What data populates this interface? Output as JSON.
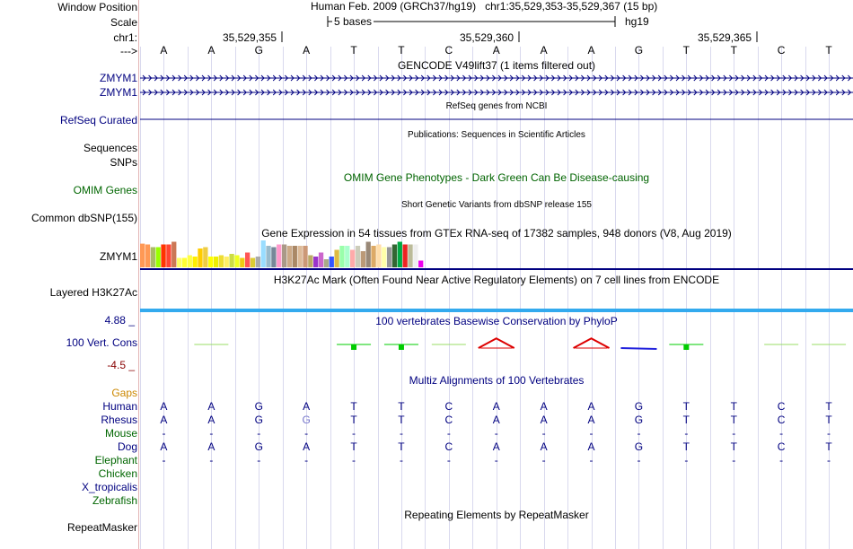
{
  "header": {
    "labels": {
      "window_position": "Window Position",
      "scale": "Scale",
      "chrom": "chr1:",
      "arrow": "--->"
    },
    "assembly": "Human Feb. 2009 (GRCh37/hg19)",
    "position": "chr1:35,529,353-35,529,367 (15 bp)",
    "scale_text": "5 bases",
    "db": "hg19",
    "coord_ticks": [
      "35,529,355",
      "35,529,360",
      "35,529,365"
    ]
  },
  "sequence": [
    "A",
    "A",
    "G",
    "A",
    "T",
    "T",
    "C",
    "A",
    "A",
    "A",
    "G",
    "T",
    "T",
    "C",
    "T"
  ],
  "gencode": {
    "title": "GENCODE V49lift37 (1 items filtered out)",
    "rows": [
      "ZMYM1",
      "ZMYM1"
    ]
  },
  "refseq": {
    "label": "RefSeq Curated",
    "title": "RefSeq genes from NCBI"
  },
  "publications": {
    "label": "Sequences",
    "title": "Publications: Sequences in Scientific Articles"
  },
  "snps": {
    "label": "SNPs"
  },
  "omim": {
    "label": "OMIM Genes",
    "title": "OMIM Gene Phenotypes - Dark Green Can Be Disease-causing"
  },
  "dbsnp": {
    "label": "Common dbSNP(155)",
    "title": "Short Genetic Variants from dbSNP release 155"
  },
  "gtex": {
    "label": "ZMYM1",
    "title": "Gene Expression in 54 tissues from GTEx RNA-seq of 17382 samples, 948 donors (V8, Aug 2019)",
    "expression": [
      0.88,
      0.85,
      0.75,
      0.75,
      0.85,
      0.85,
      0.95,
      0.35,
      0.35,
      0.45,
      0.4,
      0.7,
      0.75,
      0.4,
      0.4,
      0.45,
      0.4,
      0.5,
      0.45,
      0.35,
      0.55,
      0.35,
      0.4,
      1.0,
      0.8,
      0.75,
      0.85,
      0.85,
      0.8,
      0.8,
      0.8,
      0.8,
      0.45,
      0.4,
      0.55,
      0.3,
      0.4,
      0.65,
      0.8,
      0.8,
      0.65,
      0.8,
      0.6,
      0.95,
      0.8,
      0.85,
      0.75,
      0.75,
      0.85,
      0.95,
      0.85,
      0.85,
      0.85,
      0.25
    ],
    "colors": [
      "#ff9955",
      "#ff9955",
      "#aabb66",
      "#99ff00",
      "#ff3300",
      "#ff4433",
      "#cc7755",
      "#ffff66",
      "#ffff33",
      "#ffff44",
      "#ffee00",
      "#ffcc00",
      "#eecc44",
      "#ffff00",
      "#eeee00",
      "#eedd33",
      "#ffee66",
      "#ccdd44",
      "#eeff22",
      "#eecc11",
      "#ff5555",
      "#ddcc33",
      "#aaaaaa",
      "#99ddff",
      "#99bbcc",
      "#778899",
      "#ff99cc",
      "#aa9988",
      "#ccaa88",
      "#aa8866",
      "#ddbb99",
      "#cc9977",
      "#bbaa66",
      "#9933cc",
      "#cc66cc",
      "#aaaa88",
      "#3355ff",
      "#ddbb44",
      "#99ffaa",
      "#aaffcc",
      "#ffaaaa",
      "#ccccbb",
      "#bb9977",
      "#998877",
      "#ddaa66",
      "#ffddaa",
      "#ffffaa",
      "#999999",
      "#336633",
      "#00aa44",
      "#ee2222",
      "#bbbb99",
      "#eeeeee",
      "#ee00ee"
    ]
  },
  "h3k27ac": {
    "label": "Layered H3K27Ac",
    "title": "H3K27Ac Mark (Often Found Near Active Regulatory Elements) on 7 cell lines from ENCODE"
  },
  "phylop": {
    "label": "100 Vert. Cons",
    "max": "4.88 _",
    "min": "-4.5 _",
    "title": "100 vertebrates Basewise Conservation by PhyloP",
    "scores": [
      0,
      0.3,
      0,
      0,
      0.5,
      0.5,
      0.15,
      1.8,
      0,
      1.8,
      -0.2,
      0.5,
      0,
      0.1,
      0.1
    ]
  },
  "multiz": {
    "title": "Multiz Alignments of 100 Vertebrates",
    "gaps": "Gaps",
    "species": [
      {
        "name": "Human",
        "seq": [
          "A",
          "A",
          "G",
          "A",
          "T",
          "T",
          "C",
          "A",
          "A",
          "A",
          "G",
          "T",
          "T",
          "C",
          "T"
        ]
      },
      {
        "name": "Rhesus",
        "seq": [
          "A",
          "A",
          "G",
          "G",
          "T",
          "T",
          "C",
          "A",
          "A",
          "A",
          "G",
          "T",
          "T",
          "C",
          "T"
        ]
      },
      {
        "name": "Mouse",
        "seq": [
          "-",
          "-",
          "-",
          "-",
          "-",
          "-",
          "-",
          "-",
          "-",
          "-",
          "-",
          "-",
          "-",
          "-",
          "-"
        ]
      },
      {
        "name": "Dog",
        "seq": [
          "A",
          "A",
          "G",
          "A",
          "T",
          "T",
          "C",
          "A",
          "A",
          "A",
          "G",
          "T",
          "T",
          "C",
          "T"
        ]
      },
      {
        "name": "Elephant",
        "seq": [
          "-",
          "-",
          "-",
          "-",
          "-",
          "-",
          "-",
          "-",
          "-",
          "-",
          "-",
          "-",
          "-",
          "-",
          "-"
        ]
      },
      {
        "name": "Chicken",
        "seq": []
      },
      {
        "name": "X_tropicalis",
        "seq": []
      },
      {
        "name": "Zebrafish",
        "seq": []
      }
    ]
  },
  "repeatmasker": {
    "label": "RepeatMasker",
    "title": "Repeating Elements by RepeatMasker"
  },
  "colors": {
    "navy": "#000080",
    "label_green": "#006600",
    "omim_green": "#006400",
    "gaps_orange": "#cc8800",
    "phylop_blue": "#1e90ff",
    "h3k_blue": "#33aaee",
    "sep": "#e3b4b4"
  }
}
